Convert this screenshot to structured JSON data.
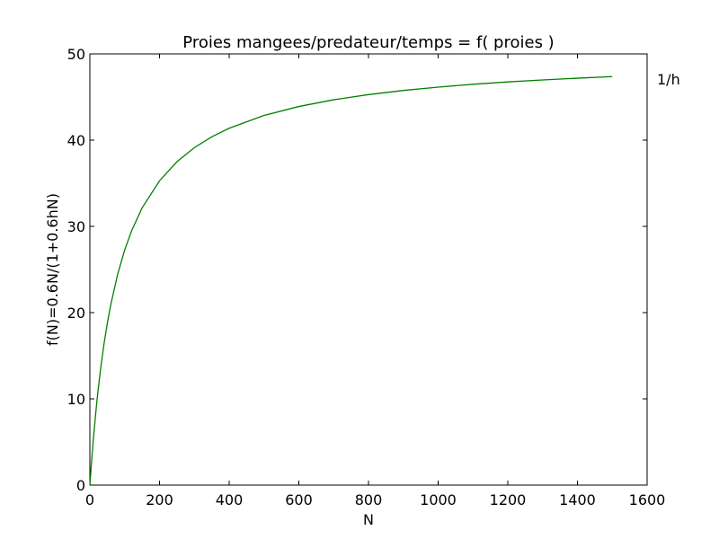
{
  "chart_data": {
    "type": "line",
    "title": "Proies mangees/predateur/temps = f( proies )",
    "xlabel": "N",
    "ylabel": "f(N)=0.6N/(1+0.6hN)",
    "xlim": [
      0,
      1600
    ],
    "ylim": [
      0,
      50
    ],
    "xticks": [
      0,
      200,
      400,
      600,
      800,
      1000,
      1200,
      1400,
      1600
    ],
    "yticks": [
      0,
      10,
      20,
      30,
      40,
      50
    ],
    "grid": false,
    "legend": "none",
    "annotation": "1/h",
    "series": [
      {
        "color": "#008000",
        "x": [
          0,
          5,
          10,
          20,
          30,
          40,
          50,
          60,
          80,
          100,
          120,
          150,
          200,
          250,
          300,
          350,
          400,
          500,
          600,
          700,
          800,
          900,
          1000,
          1100,
          1200,
          1300,
          1400,
          1500
        ],
        "y": [
          0,
          2.83,
          5.36,
          9.68,
          13.24,
          16.22,
          18.75,
          20.93,
          24.49,
          27.27,
          29.51,
          32.14,
          35.29,
          37.5,
          39.13,
          40.38,
          41.38,
          42.86,
          43.9,
          44.68,
          45.28,
          45.76,
          46.15,
          46.48,
          46.75,
          46.98,
          47.18,
          47.37
        ]
      }
    ]
  }
}
